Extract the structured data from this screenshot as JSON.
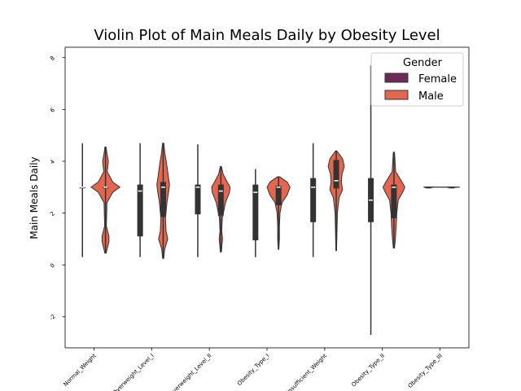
{
  "chart_data": {
    "type": "violin",
    "title": "Violin Plot of Main Meals Daily by Obesity Level",
    "xlabel": "",
    "ylabel": "Main Meals Daily",
    "ylim": [
      -3.2,
      8.4
    ],
    "yticks": [
      -2,
      0,
      2,
      4,
      6,
      8
    ],
    "categories": [
      "Normal_Weight",
      "Overweight_Level_I",
      "Overweight_Level_II",
      "Obesity_Type_I",
      "Insufficient_Weight",
      "Obesity_Type_II",
      "Obesity_Type_III"
    ],
    "legend": {
      "title": "Gender",
      "position": "top-right"
    },
    "colors": {
      "Female": "#6b2a57",
      "Male": "#e4664f",
      "box": "#333333",
      "median": "#ffffff"
    },
    "series": [
      {
        "name": "Female",
        "stats": [
          {
            "min": 0.3,
            "q1": 3.0,
            "median": 3.0,
            "q3": 3.0,
            "max": 4.7,
            "width": 0.0,
            "shape": []
          },
          {
            "min": 0.3,
            "q1": 1.1,
            "median": 2.85,
            "q3": 3.1,
            "max": 4.7,
            "width": 0.0,
            "shape": []
          },
          {
            "min": 0.3,
            "q1": 1.95,
            "median": 3.0,
            "q3": 3.1,
            "max": 4.65,
            "width": 0.0,
            "shape": []
          },
          {
            "min": 0.3,
            "q1": 0.95,
            "median": 2.8,
            "q3": 3.1,
            "max": 3.7,
            "width": 0.0,
            "shape": []
          },
          {
            "min": 0.3,
            "q1": 1.65,
            "median": 3.0,
            "q3": 3.35,
            "max": 4.7,
            "width": 0.0,
            "shape": []
          },
          {
            "min": -2.7,
            "q1": 1.65,
            "median": 2.5,
            "q3": 3.35,
            "max": 7.7,
            "width": 0.0,
            "shape": []
          },
          {
            "min": 3.0,
            "q1": 3.0,
            "median": 3.0,
            "q3": 3.0,
            "max": 3.0,
            "width": 0.0,
            "shape": []
          }
        ]
      },
      {
        "name": "Male",
        "stats": [
          {
            "min": 0.45,
            "q1": 3.0,
            "median": 3.0,
            "q3": 3.0,
            "max": 4.55,
            "width": 0.28,
            "shape": [
              [
                0.45,
                0.02
              ],
              [
                0.9,
                0.12
              ],
              [
                1.1,
                0.12
              ],
              [
                1.5,
                0.03
              ],
              [
                2.4,
                0.05
              ],
              [
                2.8,
                0.25
              ],
              [
                3.0,
                0.5
              ],
              [
                3.2,
                0.25
              ],
              [
                3.6,
                0.06
              ],
              [
                4.0,
                0.1
              ],
              [
                4.3,
                0.05
              ],
              [
                4.55,
                0.02
              ]
            ]
          },
          {
            "min": 0.25,
            "q1": 1.85,
            "median": 3.0,
            "q3": 3.2,
            "max": 4.7,
            "width": 0.17,
            "shape": [
              [
                0.25,
                0.02
              ],
              [
                0.6,
                0.05
              ],
              [
                1.0,
                0.16
              ],
              [
                1.3,
                0.1
              ],
              [
                1.8,
                0.08
              ],
              [
                2.4,
                0.13
              ],
              [
                2.9,
                0.2
              ],
              [
                3.1,
                0.22
              ],
              [
                3.4,
                0.18
              ],
              [
                3.9,
                0.12
              ],
              [
                4.3,
                0.06
              ],
              [
                4.7,
                0.02
              ]
            ]
          },
          {
            "min": 0.5,
            "q1": 1.9,
            "median": 2.85,
            "q3": 3.1,
            "max": 3.8,
            "width": 0.2,
            "shape": [
              [
                0.5,
                0.02
              ],
              [
                0.8,
                0.04
              ],
              [
                1.0,
                0.06
              ],
              [
                1.3,
                0.03
              ],
              [
                1.8,
                0.05
              ],
              [
                2.4,
                0.16
              ],
              [
                2.8,
                0.3
              ],
              [
                3.0,
                0.32
              ],
              [
                3.2,
                0.22
              ],
              [
                3.5,
                0.08
              ],
              [
                3.8,
                0.02
              ]
            ]
          },
          {
            "min": 0.6,
            "q1": 2.3,
            "median": 3.0,
            "q3": 3.05,
            "max": 3.4,
            "width": 0.3,
            "shape": [
              [
                0.6,
                0.01
              ],
              [
                1.0,
                0.03
              ],
              [
                1.5,
                0.03
              ],
              [
                2.0,
                0.05
              ],
              [
                2.4,
                0.12
              ],
              [
                2.7,
                0.3
              ],
              [
                3.0,
                0.4
              ],
              [
                3.2,
                0.3
              ],
              [
                3.4,
                0.04
              ]
            ]
          },
          {
            "min": 0.55,
            "q1": 2.95,
            "median": 3.25,
            "q3": 4.05,
            "max": 4.4,
            "width": 0.22,
            "shape": [
              [
                0.55,
                0.01
              ],
              [
                1.0,
                0.02
              ],
              [
                2.0,
                0.04
              ],
              [
                2.6,
                0.1
              ],
              [
                2.9,
                0.22
              ],
              [
                3.2,
                0.18
              ],
              [
                3.5,
                0.2
              ],
              [
                3.8,
                0.28
              ],
              [
                4.1,
                0.22
              ],
              [
                4.4,
                0.02
              ]
            ]
          },
          {
            "min": 0.65,
            "q1": 1.8,
            "median": 3.0,
            "q3": 3.1,
            "max": 4.35,
            "width": 0.25,
            "shape": [
              [
                0.65,
                0.02
              ],
              [
                1.0,
                0.05
              ],
              [
                1.5,
                0.08
              ],
              [
                2.0,
                0.1
              ],
              [
                2.5,
                0.15
              ],
              [
                2.8,
                0.3
              ],
              [
                3.0,
                0.38
              ],
              [
                3.2,
                0.28
              ],
              [
                3.6,
                0.06
              ],
              [
                4.0,
                0.04
              ],
              [
                4.35,
                0.02
              ]
            ]
          },
          {
            "min": 3.0,
            "q1": 3.0,
            "median": 3.0,
            "q3": 3.0,
            "max": 3.0,
            "width": 0.0,
            "shape": []
          }
        ]
      }
    ]
  }
}
